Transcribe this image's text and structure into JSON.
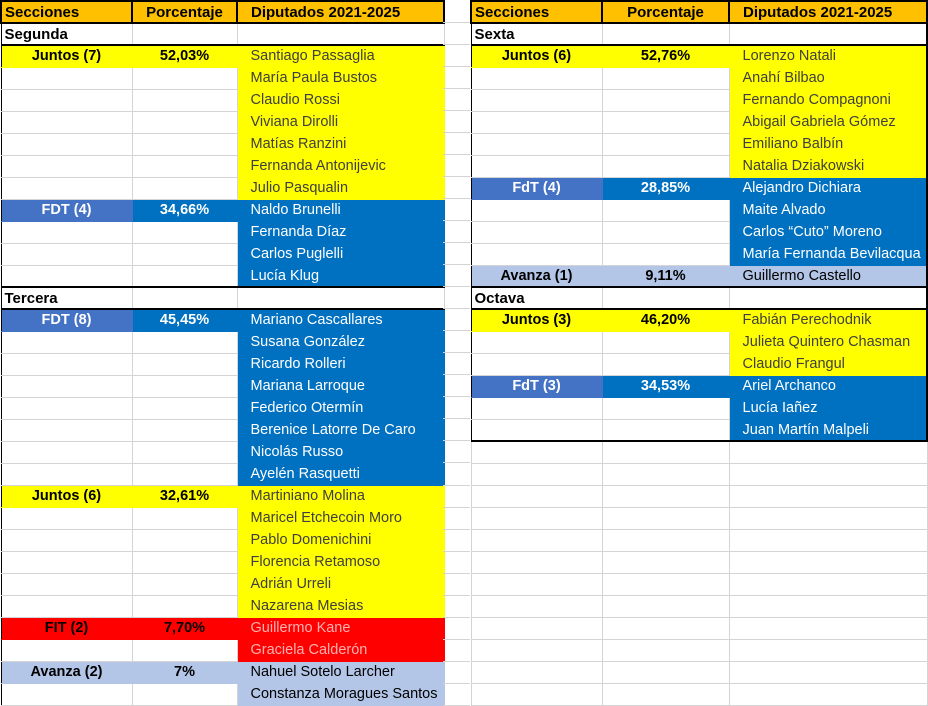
{
  "chrome_colors": {
    "header_bg": "#FFC000",
    "gridline": "#D4D4D4",
    "border_black": "#000000",
    "sheet_bg": "#FFFFFF"
  },
  "party_styles": {
    "juntos": {
      "bg": "#FFFF00",
      "label_bg": "#FFFF00",
      "label_fg": "#000000",
      "deputy_fg": "#3F3F3F"
    },
    "fdt": {
      "bg": "#0070C0",
      "label_bg": "#4472C4",
      "label_fg": "#FFFFFF",
      "deputy_fg": "#FFFFFF"
    },
    "fit": {
      "bg": "#FF0000",
      "label_bg": "#FF0000",
      "label_fg": "#000000",
      "deputy_fg": "#FFB0B0"
    },
    "avanza": {
      "bg": "#B4C6E7",
      "label_bg": "#B4C6E7",
      "label_fg": "#000000",
      "deputy_fg": "#000000"
    }
  },
  "tables": [
    {
      "id": "left",
      "headers": [
        "Secciones",
        "Porcentaje",
        "Diputados 2021-2025"
      ],
      "sections": [
        {
          "name": "Segunda",
          "groups": [
            {
              "party": "Juntos (7)",
              "style": "juntos",
              "percent": "52,03%",
              "deputies": [
                "Santiago Passaglia",
                "María Paula Bustos",
                "Claudio Rossi",
                "Viviana Dirolli",
                "Matías Ranzini",
                "Fernanda Antonijevic",
                "Julio Pasqualin"
              ]
            },
            {
              "party": "FDT (4)",
              "style": "fdt",
              "percent": "34,66%",
              "deputies": [
                "Naldo Brunelli",
                "Fernanda Díaz",
                "Carlos Puglelli",
                "Lucía Klug"
              ]
            }
          ]
        },
        {
          "name": "Tercera",
          "groups": [
            {
              "party": "FDT (8)",
              "style": "fdt",
              "percent": "45,45%",
              "deputies": [
                "Mariano Cascallares",
                "Susana González",
                "Ricardo Rolleri",
                "Mariana Larroque",
                "Federico Otermín",
                "Berenice Latorre De Caro",
                "Nicolás Russo",
                "Ayelén Rasquetti"
              ]
            },
            {
              "party": "Juntos (6)",
              "style": "juntos",
              "percent": "32,61%",
              "deputies": [
                "Martiniano Molina",
                "Maricel Etchecoin Moro",
                "Pablo Domenichini",
                "Florencia Retamoso",
                "Adrián Urreli",
                "Nazarena Mesias"
              ]
            },
            {
              "party": "FIT (2)",
              "style": "fit",
              "percent": "7,70%",
              "deputies": [
                "Guillermo Kane",
                "Graciela Calderón"
              ]
            },
            {
              "party": "Avanza (2)",
              "style": "avanza",
              "percent": "7%",
              "deputies": [
                "Nahuel Sotelo Larcher",
                "Constanza Moragues Santos"
              ]
            }
          ]
        }
      ],
      "trailing_empty_rows": 0
    },
    {
      "id": "right",
      "headers": [
        "Secciones",
        "Porcentaje",
        "Diputados 2021-2025"
      ],
      "sections": [
        {
          "name": "Sexta",
          "groups": [
            {
              "party": "Juntos (6)",
              "style": "juntos",
              "percent": "52,76%",
              "deputies": [
                "Lorenzo Natali",
                "Anahí Bilbao",
                "Fernando Compagnoni",
                "Abigail Gabriela Gómez",
                "Emiliano Balbín",
                "Natalia Dziakowski"
              ]
            },
            {
              "party": "FdT (4)",
              "style": "fdt",
              "percent": "28,85%",
              "deputies": [
                "Alejandro Dichiara",
                "Maite Alvado",
                "Carlos “Cuto” Moreno",
                "María Fernanda Bevilacqua"
              ]
            },
            {
              "party": "Avanza (1)",
              "style": "avanza",
              "percent": "9,11%",
              "deputies": [
                "Guillermo Castello"
              ]
            }
          ]
        },
        {
          "name": "Octava",
          "groups": [
            {
              "party": "Juntos (3)",
              "style": "juntos",
              "percent": "46,20%",
              "deputies": [
                "Fabián Perechodnik",
                "Julieta Quintero Chasman",
                "Claudio Frangul"
              ]
            },
            {
              "party": "FdT (3)",
              "style": "fdt",
              "percent": "34,53%",
              "deputies": [
                "Ariel Archanco",
                "Lucía Iañez",
                "Juan Martín Malpeli"
              ]
            }
          ]
        }
      ],
      "trailing_empty_rows": 12
    }
  ]
}
